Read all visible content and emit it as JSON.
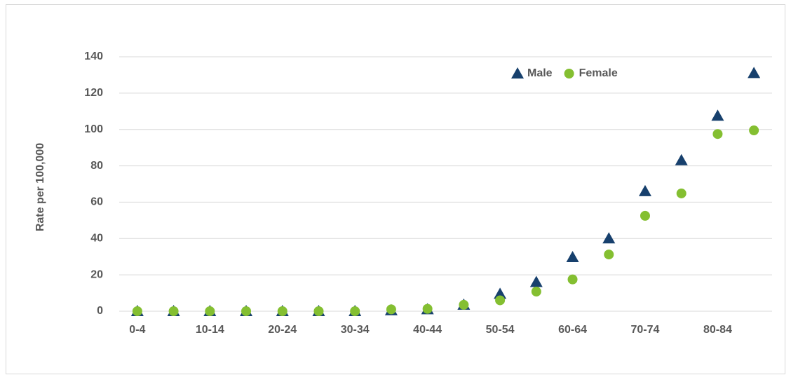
{
  "chart_data": {
    "type": "scatter",
    "y_label": "Rate per 100,000",
    "categories": [
      "0-4",
      null,
      "10-14",
      null,
      "20-24",
      null,
      "30-34",
      null,
      "40-44",
      null,
      "50-54",
      null,
      "60-64",
      null,
      "70-74",
      null,
      "80-84",
      null
    ],
    "series": [
      {
        "name": "Male",
        "color": "#17406d",
        "marker": "triangle",
        "values": [
          0,
          0,
          0,
          0,
          0,
          0,
          0,
          0.5,
          1,
          3.5,
          9.5,
          16,
          29.7,
          40,
          66,
          83,
          107.5,
          131
        ]
      },
      {
        "name": "Female",
        "color": "#84bf31",
        "marker": "circle",
        "values": [
          0,
          0,
          0,
          0,
          0,
          0,
          0,
          1,
          1.3,
          3.5,
          6,
          10.8,
          17.5,
          31.2,
          52.5,
          64.8,
          97.5,
          99.5
        ]
      }
    ],
    "ylim": [
      0,
      140
    ],
    "yticks": [
      0,
      20,
      40,
      60,
      80,
      100,
      120,
      140
    ],
    "grid": true,
    "legend": "top-right"
  }
}
